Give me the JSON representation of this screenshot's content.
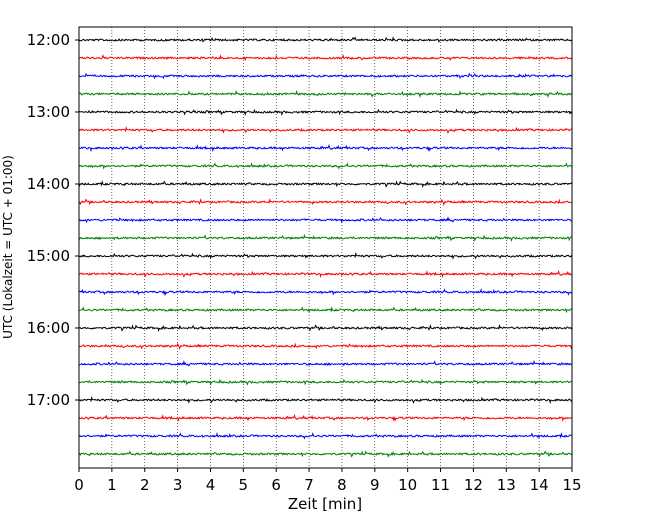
{
  "chart_data": {
    "type": "line",
    "title": "",
    "xlabel": "Zeit  [min]",
    "ylabel": "UTC (Lokalzeit = UTC + 01:00)",
    "xlim": [
      0,
      15
    ],
    "x_ticks": [
      "0",
      "1",
      "2",
      "3",
      "4",
      "5",
      "6",
      "7",
      "8",
      "9",
      "10",
      "11",
      "12",
      "13",
      "14",
      "15"
    ],
    "y_tick_labels": [
      "12:00",
      "13:00",
      "14:00",
      "15:00",
      "16:00",
      "17:00"
    ],
    "grid": "vertical dotted",
    "traces_per_hour": 4,
    "trace_start_times": [
      "12:00",
      "12:15",
      "12:30",
      "12:45",
      "13:00",
      "13:15",
      "13:30",
      "13:45",
      "14:00",
      "14:15",
      "14:30",
      "14:45",
      "15:00",
      "15:15",
      "15:30",
      "15:45",
      "16:00",
      "16:15",
      "16:30",
      "16:45",
      "17:00",
      "17:15",
      "17:30",
      "17:45"
    ],
    "series_colors": [
      "#000000",
      "#ff0000",
      "#0000ff",
      "#008000"
    ]
  }
}
